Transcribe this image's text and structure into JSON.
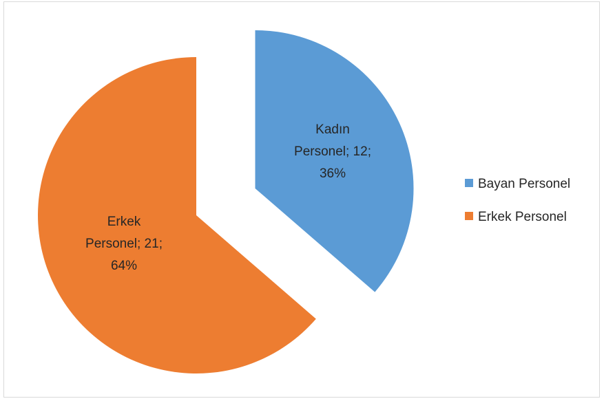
{
  "chart_data": {
    "type": "pie",
    "slices": [
      {
        "label_lines": [
          "Kadın",
          "Personel; 12;",
          "36%"
        ],
        "value": 12,
        "percent": 36,
        "color": "#5B9BD5",
        "exploded": true
      },
      {
        "label_lines": [
          "Erkek",
          "Personel; 21;",
          "64%"
        ],
        "value": 21,
        "percent": 64,
        "color": "#ED7D31",
        "exploded": false
      }
    ],
    "legend": {
      "placement": "right",
      "entries": [
        {
          "label": "Bayan Personel",
          "color": "#5B9BD5"
        },
        {
          "label": "Erkek Personel",
          "color": "#ED7D31"
        }
      ]
    }
  }
}
